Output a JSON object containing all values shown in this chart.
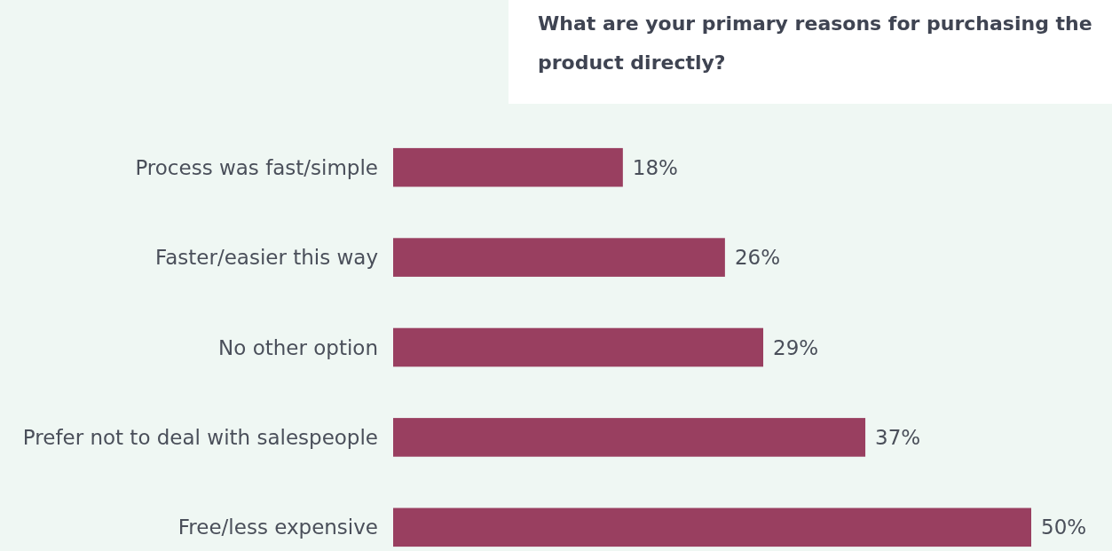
{
  "chart_data": {
    "type": "bar",
    "orientation": "horizontal",
    "title": "What are your primary reasons for purchasing the product directly?",
    "categories": [
      "Process was fast/simple",
      "Faster/easier this way",
      "No other option",
      "Prefer not to deal with salespeople",
      "Free/less expensive"
    ],
    "values": [
      18,
      26,
      29,
      37,
      50
    ],
    "color": "#993f60",
    "xlim": [
      0,
      50
    ],
    "value_labels": [
      "18%",
      "26%",
      "29%",
      "37%",
      "50%"
    ]
  }
}
